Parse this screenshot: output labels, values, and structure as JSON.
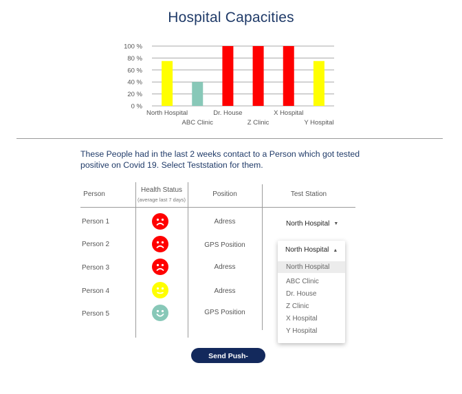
{
  "title": "Hospital Capacities",
  "chart_data": {
    "type": "bar",
    "categories": [
      "North Hospital",
      "ABC Clinic",
      "Dr. House",
      "Z Clinic",
      "X Hospital",
      "Y Hospital"
    ],
    "values": [
      75,
      40,
      100,
      100,
      100,
      75
    ],
    "colors": [
      "#ffff00",
      "#88c8b8",
      "#ff0000",
      "#ff0000",
      "#ff0000",
      "#ffff00"
    ],
    "yticks": [
      "0 %",
      "20 %",
      "40 %",
      "60 %",
      "80 %",
      "100 %"
    ],
    "ylim": [
      0,
      100
    ],
    "grid": true
  },
  "intro_text": "These People had in the last 2 weeks contact to a Person which got tested positive on Covid 19. Select Teststation for them.",
  "table": {
    "headers": {
      "person": "Person",
      "health": "Health Status",
      "health_sub": "(average last 7 days)",
      "position": "Position",
      "station": "Test Station"
    },
    "rows": [
      {
        "person": "Person 1",
        "status": "sad",
        "color": "#ff0000",
        "position": "Adress",
        "station": "North Hospital"
      },
      {
        "person": "Person 2",
        "status": "sad",
        "color": "#ff0000",
        "position": "GPS Position",
        "station": "North Hospital"
      },
      {
        "person": "Person 3",
        "status": "sad",
        "color": "#ff0000",
        "position": "Adress",
        "station": ""
      },
      {
        "person": "Person 4",
        "status": "neutral",
        "color": "#ffff00",
        "position": "Adress",
        "station": ""
      },
      {
        "person": "Person 5",
        "status": "happy",
        "color": "#88c8b8",
        "position": "GPS Position",
        "station": ""
      }
    ]
  },
  "dropdown": {
    "selected": "North Hospital",
    "options": [
      "North Hospital",
      "ABC Clinic",
      "Dr. House",
      "Z Clinic",
      "X Hospital",
      "Y Hospital"
    ]
  },
  "button_label": "Send Push-Warning",
  "icons": {
    "collapsed_caret": "caret-down-icon",
    "expanded_caret": "caret-up-icon"
  }
}
